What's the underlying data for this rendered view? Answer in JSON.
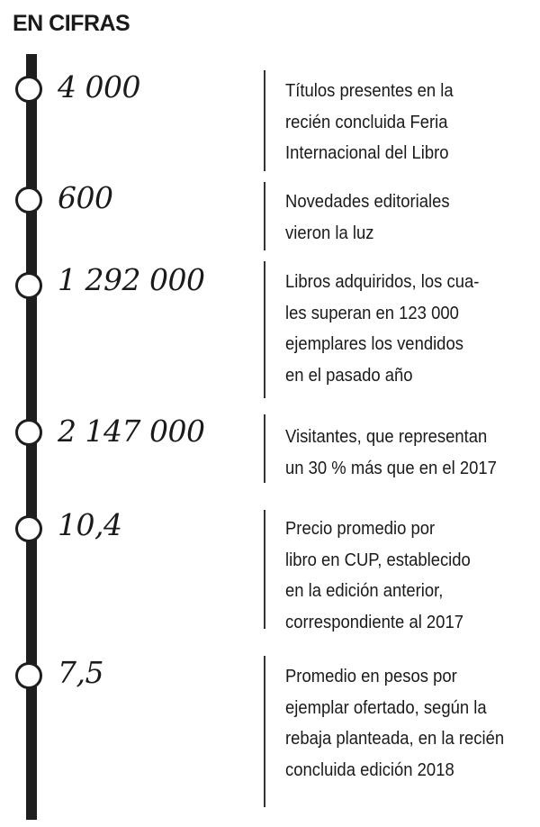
{
  "title": "EN CIFRAS",
  "items": [
    {
      "number": "4 000",
      "lines": [
        "Títulos presentes en la",
        "recién concluida Feria",
        "Internacional del   Libro"
      ]
    },
    {
      "number": "600",
      "lines": [
        "Novedades editoriales",
        "vieron la luz"
      ]
    },
    {
      "number": "1 292 000",
      "lines": [
        "Libros adquiridos, los cua-",
        "les superan en 123 000",
        "ejemplares los vendidos",
        "en el pasado año"
      ]
    },
    {
      "number": "2 147 000",
      "lines": [
        "Visitantes, que representan",
        "un 30 % más que en el 2017"
      ]
    },
    {
      "number": "10,4",
      "lines": [
        "Precio promedio por",
        "libro en CUP, establecido",
        "en la edición anterior,",
        "correspondiente al 2017"
      ]
    },
    {
      "number": "7,5",
      "lines": [
        "Promedio en pesos por",
        "ejemplar ofertado, según la",
        "rebaja planteada, en la recién",
        "concluida edición 2018"
      ]
    }
  ]
}
